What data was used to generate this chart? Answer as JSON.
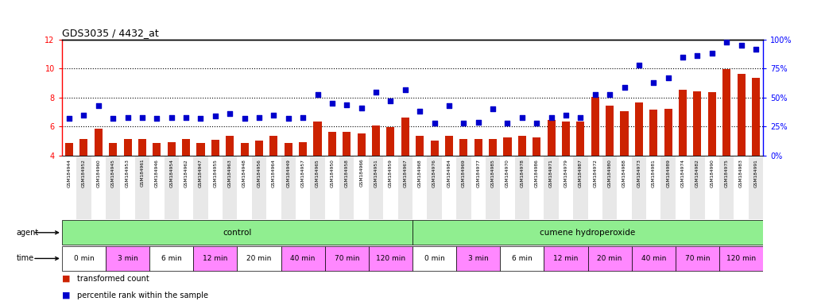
{
  "title": "GDS3035 / 4432_at",
  "samples": [
    "GSM184944",
    "GSM184952",
    "GSM184960",
    "GSM184945",
    "GSM184953",
    "GSM184961",
    "GSM184946",
    "GSM184954",
    "GSM184962",
    "GSM184947",
    "GSM184955",
    "GSM184963",
    "GSM184948",
    "GSM184956",
    "GSM184964",
    "GSM184949",
    "GSM184957",
    "GSM184965",
    "GSM184950",
    "GSM184958",
    "GSM184966",
    "GSM184951",
    "GSM184959",
    "GSM184967",
    "GSM184968",
    "GSM184976",
    "GSM184984",
    "GSM184969",
    "GSM184977",
    "GSM184985",
    "GSM184970",
    "GSM184978",
    "GSM184986",
    "GSM184971",
    "GSM184979",
    "GSM184987",
    "GSM184972",
    "GSM184980",
    "GSM184988",
    "GSM184973",
    "GSM184981",
    "GSM184989",
    "GSM184974",
    "GSM184982",
    "GSM184990",
    "GSM184975",
    "GSM184983",
    "GSM184991"
  ],
  "bar_values": [
    4.85,
    5.15,
    5.85,
    4.85,
    5.15,
    5.15,
    4.85,
    4.95,
    5.15,
    4.85,
    5.1,
    5.35,
    4.85,
    5.05,
    5.35,
    4.85,
    4.95,
    6.35,
    5.65,
    5.65,
    5.55,
    6.1,
    5.95,
    6.65,
    5.35,
    5.05,
    5.35,
    5.15,
    5.15,
    5.15,
    5.25,
    5.35,
    5.25,
    6.45,
    6.35,
    6.35,
    8.05,
    7.45,
    7.05,
    7.65,
    7.15,
    7.25,
    8.55,
    8.45,
    8.35,
    9.95,
    9.65,
    9.35
  ],
  "percentile_values": [
    32,
    35,
    43,
    32,
    33,
    33,
    32,
    33,
    33,
    32,
    34,
    36,
    32,
    33,
    35,
    32,
    33,
    53,
    45,
    44,
    41,
    55,
    47,
    57,
    38,
    28,
    43,
    28,
    29,
    40,
    28,
    33,
    28,
    33,
    35,
    33,
    53,
    53,
    59,
    78,
    63,
    67,
    85,
    86,
    88,
    98,
    95,
    92
  ],
  "agent_groups": [
    {
      "label": "control",
      "start": 0,
      "end": 24,
      "color": "#90EE90"
    },
    {
      "label": "cumene hydroperoxide",
      "start": 24,
      "end": 48,
      "color": "#90EE90"
    }
  ],
  "time_groups": [
    {
      "label": "0 min",
      "start": 0,
      "end": 3,
      "color": "#ffffff"
    },
    {
      "label": "3 min",
      "start": 3,
      "end": 6,
      "color": "#FF88FF"
    },
    {
      "label": "6 min",
      "start": 6,
      "end": 9,
      "color": "#ffffff"
    },
    {
      "label": "12 min",
      "start": 9,
      "end": 12,
      "color": "#FF88FF"
    },
    {
      "label": "20 min",
      "start": 12,
      "end": 15,
      "color": "#ffffff"
    },
    {
      "label": "40 min",
      "start": 15,
      "end": 18,
      "color": "#FF88FF"
    },
    {
      "label": "70 min",
      "start": 18,
      "end": 21,
      "color": "#FF88FF"
    },
    {
      "label": "120 min",
      "start": 21,
      "end": 24,
      "color": "#FF88FF"
    },
    {
      "label": "0 min",
      "start": 24,
      "end": 27,
      "color": "#ffffff"
    },
    {
      "label": "3 min",
      "start": 27,
      "end": 30,
      "color": "#FF88FF"
    },
    {
      "label": "6 min",
      "start": 30,
      "end": 33,
      "color": "#ffffff"
    },
    {
      "label": "12 min",
      "start": 33,
      "end": 36,
      "color": "#FF88FF"
    },
    {
      "label": "20 min",
      "start": 36,
      "end": 39,
      "color": "#FF88FF"
    },
    {
      "label": "40 min",
      "start": 39,
      "end": 42,
      "color": "#FF88FF"
    },
    {
      "label": "70 min",
      "start": 42,
      "end": 45,
      "color": "#FF88FF"
    },
    {
      "label": "120 min",
      "start": 45,
      "end": 48,
      "color": "#FF88FF"
    }
  ],
  "ylim_left": [
    4,
    12
  ],
  "ylim_right": [
    0,
    100
  ],
  "yticks_left": [
    4,
    6,
    8,
    10,
    12
  ],
  "yticks_right": [
    0,
    25,
    50,
    75,
    100
  ],
  "bar_color": "#CC2200",
  "scatter_color": "#0000CC",
  "background_color": "#ffffff",
  "label_band_color": "#d8d8d8",
  "agent_bg_color": "#d8d8d8",
  "legend_red": "transformed count",
  "legend_blue": "percentile rank within the sample"
}
